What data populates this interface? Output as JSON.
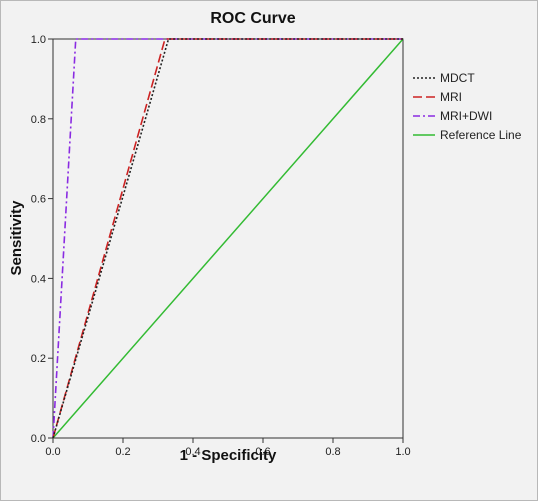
{
  "chart_data": {
    "type": "line",
    "title": "ROC Curve",
    "xlabel": "1 - Specificity",
    "ylabel": "Sensitivity",
    "xlim": [
      0,
      1
    ],
    "ylim": [
      0,
      1
    ],
    "xticks": [
      "0.0",
      "0.2",
      "0.4",
      "0.6",
      "0.8",
      "1.0"
    ],
    "yticks": [
      "0.0",
      "0.2",
      "0.4",
      "0.6",
      "0.8",
      "1.0"
    ],
    "grid": false,
    "legend_position": "right",
    "series": [
      {
        "name": "MDCT",
        "color": "#222222",
        "style": "dotted",
        "points": [
          [
            0,
            0
          ],
          [
            0.33,
            1
          ],
          [
            1,
            1
          ]
        ]
      },
      {
        "name": "MRI",
        "color": "#cc2222",
        "style": "dashed",
        "points": [
          [
            0,
            0
          ],
          [
            0.32,
            1
          ],
          [
            1,
            1
          ]
        ]
      },
      {
        "name": "MRI+DWI",
        "color": "#8a2be2",
        "style": "dashdot",
        "points": [
          [
            0,
            0
          ],
          [
            0.065,
            1
          ],
          [
            1,
            1
          ]
        ]
      },
      {
        "name": "Reference Line",
        "color": "#33bb33",
        "style": "solid",
        "points": [
          [
            0,
            0
          ],
          [
            1,
            1
          ]
        ]
      }
    ]
  }
}
